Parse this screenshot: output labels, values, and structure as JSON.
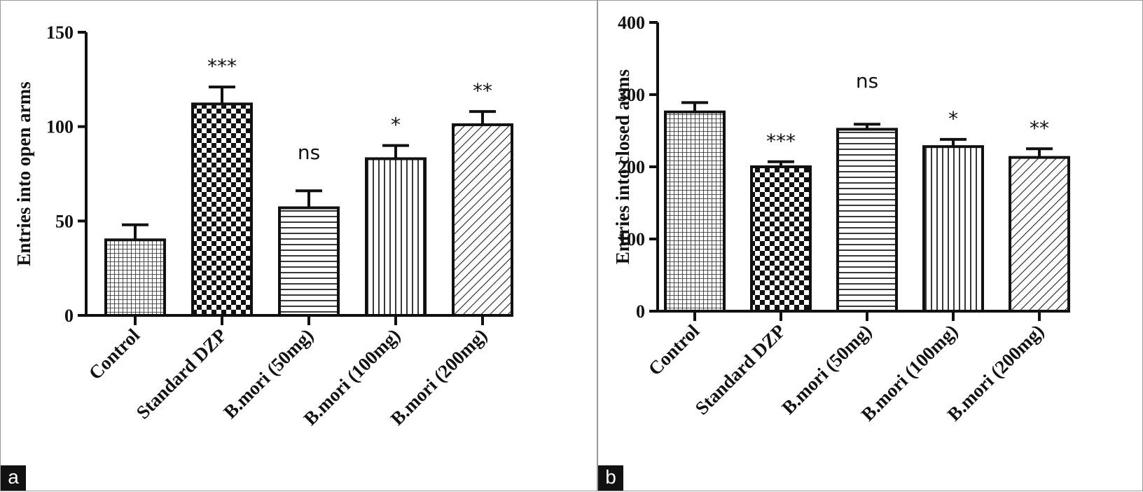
{
  "panels": [
    {
      "label": "a"
    },
    {
      "label": "b"
    }
  ],
  "chart_data": [
    {
      "type": "bar",
      "ylabel": "Entries into open arms",
      "ylim": [
        0,
        150
      ],
      "yticks": [
        0,
        50,
        100,
        150
      ],
      "categories": [
        "Control",
        "Standard DZP",
        "B.mori (50mg)",
        "B.mori (100mg)",
        "B.mori (200mg)"
      ],
      "values": [
        40,
        112,
        57,
        83,
        101
      ],
      "errors": [
        8,
        9,
        9,
        7,
        7
      ],
      "significance": [
        "",
        "***",
        "ns",
        "*",
        "**"
      ],
      "patterns": [
        "grid",
        "checker",
        "hlines",
        "vlines",
        "diag"
      ]
    },
    {
      "type": "bar",
      "ylabel": "Entries into closed arms",
      "ylim": [
        0,
        400
      ],
      "yticks": [
        0,
        100,
        200,
        300,
        400
      ],
      "categories": [
        "Control",
        "Standard DZP",
        "B.mori (50mg)",
        "B.mori (100mg)",
        "B.mori (200mg)"
      ],
      "values": [
        276,
        200,
        252,
        228,
        213
      ],
      "errors": [
        13,
        7,
        7,
        10,
        12
      ],
      "significance": [
        "",
        "***",
        "ns",
        "*",
        "**"
      ],
      "patterns": [
        "grid",
        "checker",
        "hlines",
        "vlines",
        "diag"
      ]
    }
  ]
}
